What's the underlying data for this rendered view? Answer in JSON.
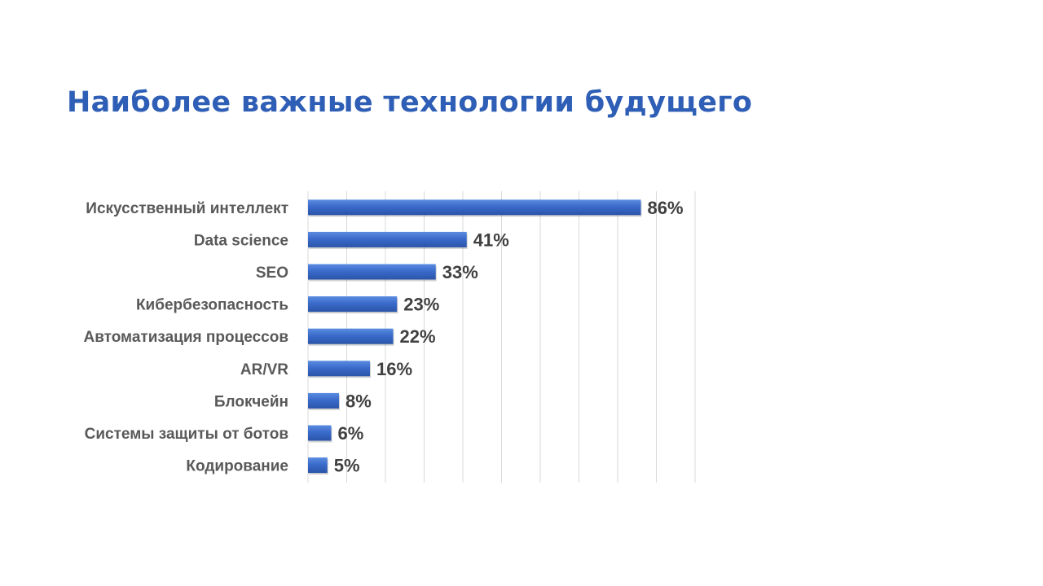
{
  "slide": {
    "title": "Наиболее важные технологии будущего"
  },
  "colors": {
    "title": "#2E5EB5",
    "bar": "#3A6BCB",
    "bar_light": "#5B8CE0",
    "bar_dark": "#2A54A8",
    "grid": "#D9D9D9",
    "category_text": "#595959",
    "value_text": "#404040"
  },
  "chart_data": {
    "type": "bar",
    "orientation": "horizontal",
    "categories": [
      "Искусственный интеллект",
      "Data science",
      "SEO",
      "Кибербезопасность",
      "Автоматизация процессов",
      "AR/VR",
      "Блокчейн",
      "Системы защиты от ботов",
      "Кодирование"
    ],
    "values": [
      86,
      41,
      33,
      23,
      22,
      16,
      8,
      6,
      5
    ],
    "value_labels": [
      "86%",
      "41%",
      "33%",
      "23%",
      "22%",
      "16%",
      "8%",
      "6%",
      "5%"
    ],
    "unit": "%",
    "xlim": [
      0,
      100
    ],
    "gridlines": true,
    "legend": "none"
  }
}
